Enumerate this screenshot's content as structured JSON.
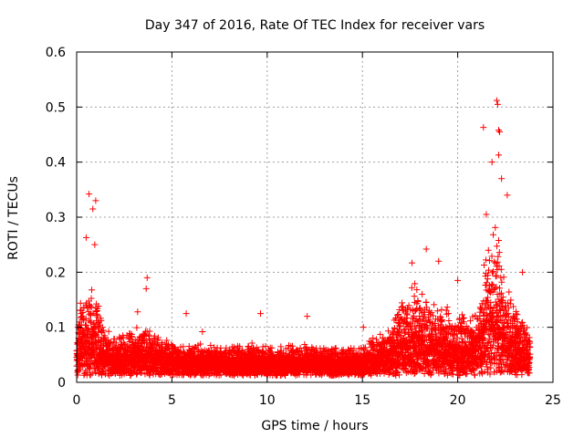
{
  "chart_data": {
    "type": "scatter",
    "title": "Day 347 of 2016, Rate Of TEC Index for receiver vars",
    "xlabel": "GPS time / hours",
    "ylabel": "ROTI / TECUs",
    "xlim": [
      0,
      25
    ],
    "ylim": [
      0,
      0.6
    ],
    "xticks": [
      "0",
      "5",
      "10",
      "15",
      "20",
      "25"
    ],
    "yticks": [
      "0",
      "0.1",
      "0.2",
      "0.3",
      "0.4",
      "0.5",
      "0.6"
    ],
    "grid": true,
    "marker": "+",
    "color": "#ff0000",
    "notable_points": [
      {
        "x": 0.5,
        "y": 0.263
      },
      {
        "x": 0.65,
        "y": 0.342
      },
      {
        "x": 0.85,
        "y": 0.315
      },
      {
        "x": 1.0,
        "y": 0.33
      },
      {
        "x": 0.95,
        "y": 0.25
      },
      {
        "x": 3.7,
        "y": 0.19
      },
      {
        "x": 3.65,
        "y": 0.17
      },
      {
        "x": 3.2,
        "y": 0.128
      },
      {
        "x": 5.75,
        "y": 0.125
      },
      {
        "x": 9.65,
        "y": 0.125
      },
      {
        "x": 12.1,
        "y": 0.12
      },
      {
        "x": 18.35,
        "y": 0.242
      },
      {
        "x": 17.6,
        "y": 0.217
      },
      {
        "x": 19.0,
        "y": 0.22
      },
      {
        "x": 20.0,
        "y": 0.185
      },
      {
        "x": 21.35,
        "y": 0.463
      },
      {
        "x": 21.8,
        "y": 0.4
      },
      {
        "x": 22.05,
        "y": 0.512
      },
      {
        "x": 22.1,
        "y": 0.505
      },
      {
        "x": 22.15,
        "y": 0.458
      },
      {
        "x": 22.2,
        "y": 0.455
      },
      {
        "x": 22.15,
        "y": 0.413
      },
      {
        "x": 22.3,
        "y": 0.37
      },
      {
        "x": 22.6,
        "y": 0.34
      },
      {
        "x": 21.5,
        "y": 0.305
      },
      {
        "x": 23.4,
        "y": 0.2
      },
      {
        "x": 15.05,
        "y": 0.1
      },
      {
        "x": 6.6,
        "y": 0.092
      }
    ],
    "density_profile": {
      "x_hours": [
        0,
        0.5,
        1,
        1.5,
        2,
        3,
        4,
        5,
        6,
        7,
        8,
        9,
        10,
        11,
        12,
        13,
        14,
        15,
        16,
        17,
        17.5,
        18,
        19,
        20,
        21,
        21.5,
        22,
        22.5,
        23,
        23.8
      ],
      "typical_roti": [
        0.06,
        0.08,
        0.07,
        0.04,
        0.035,
        0.04,
        0.04,
        0.03,
        0.03,
        0.03,
        0.028,
        0.028,
        0.025,
        0.027,
        0.028,
        0.028,
        0.025,
        0.025,
        0.04,
        0.06,
        0.07,
        0.07,
        0.06,
        0.05,
        0.05,
        0.1,
        0.12,
        0.08,
        0.06,
        0.05
      ],
      "spread_roti": [
        0.05,
        0.1,
        0.09,
        0.05,
        0.04,
        0.05,
        0.05,
        0.03,
        0.03,
        0.03,
        0.03,
        0.035,
        0.03,
        0.03,
        0.03,
        0.03,
        0.03,
        0.03,
        0.05,
        0.08,
        0.1,
        0.1,
        0.08,
        0.07,
        0.08,
        0.15,
        0.18,
        0.1,
        0.07,
        0.05
      ]
    }
  }
}
